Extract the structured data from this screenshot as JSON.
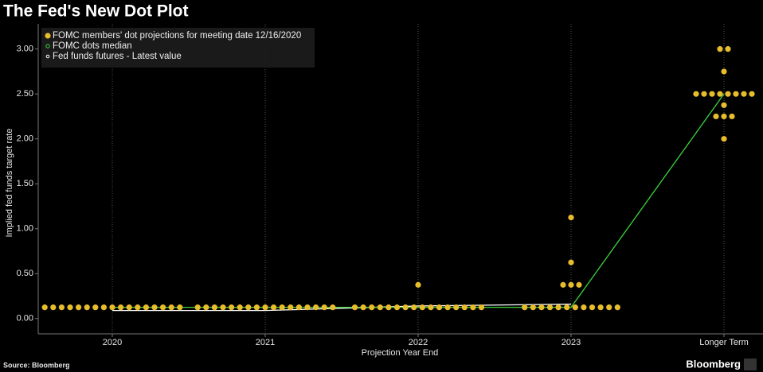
{
  "chart_data": {
    "type": "dot",
    "title": "The Fed's New Dot Plot",
    "x_label": "Projection Year End",
    "y_label": "Implied fed funds target rate",
    "source": "Source: Bloomberg",
    "brand": "Bloomberg",
    "categories": [
      "2020",
      "2021",
      "2022",
      "2023",
      "Longer Term"
    ],
    "ylim": [
      -0.17,
      3.28
    ],
    "yticks": [
      {
        "value": 0,
        "label": "0.00"
      },
      {
        "value": 0.5,
        "label": "0.50"
      },
      {
        "value": 1,
        "label": "1.00"
      },
      {
        "value": 1.5,
        "label": "1.50"
      },
      {
        "value": 2,
        "label": "2.00"
      },
      {
        "value": 2.5,
        "label": "2.50"
      },
      {
        "value": 3,
        "label": "3.00"
      }
    ],
    "grid": true,
    "series": [
      {
        "name": "FOMC members' dot projections for meeting date 12/16/2020",
        "color": "#e8bd2c",
        "values": [
          [
            0.125,
            0.125,
            0.125,
            0.125,
            0.125,
            0.125,
            0.125,
            0.125,
            0.125,
            0.125,
            0.125,
            0.125,
            0.125,
            0.125,
            0.125,
            0.125,
            0.125
          ],
          [
            0.125,
            0.125,
            0.125,
            0.125,
            0.125,
            0.125,
            0.125,
            0.125,
            0.125,
            0.125,
            0.125,
            0.125,
            0.125,
            0.125,
            0.125,
            0.125,
            0.125
          ],
          [
            0.125,
            0.125,
            0.125,
            0.125,
            0.125,
            0.125,
            0.125,
            0.125,
            0.125,
            0.125,
            0.125,
            0.125,
            0.125,
            0.125,
            0.125,
            0.125,
            0.375
          ],
          [
            0.125,
            0.125,
            0.125,
            0.125,
            0.125,
            0.125,
            0.125,
            0.125,
            0.125,
            0.125,
            0.125,
            0.125,
            0.375,
            0.375,
            0.375,
            0.625,
            1.125
          ],
          [
            2,
            2.25,
            2.25,
            2.25,
            2.375,
            2.5,
            2.5,
            2.5,
            2.5,
            2.5,
            2.5,
            2.5,
            2.5,
            2.75,
            3,
            3
          ]
        ]
      },
      {
        "name": "FOMC dots median",
        "color": "#3ad43a",
        "values": [
          0.125,
          0.125,
          0.125,
          0.125,
          2.5
        ]
      },
      {
        "name": "Fed funds futures - Latest value",
        "color": "#ffffff",
        "values": [
          0.09,
          0.09,
          0.14,
          0.16,
          null
        ]
      }
    ]
  }
}
